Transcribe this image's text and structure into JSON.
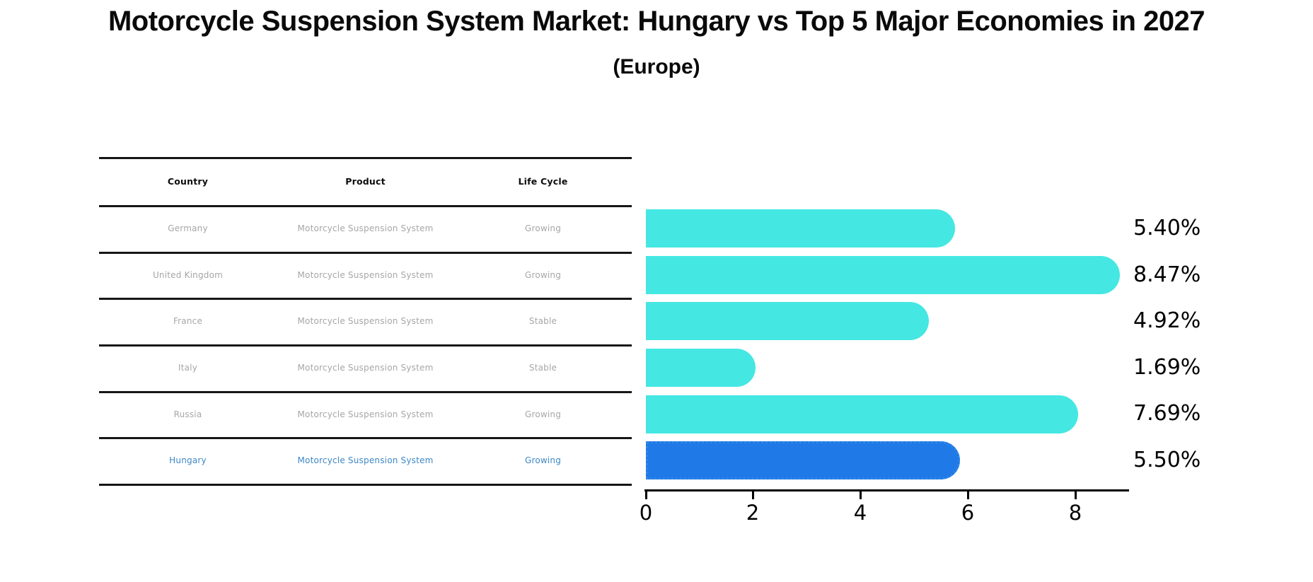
{
  "title": "Motorcycle Suspension System Market: Hungary vs Top 5 Major Economies in 2027",
  "subtitle": "(Europe)",
  "table": {
    "headers": {
      "country": "Country",
      "product": "Product",
      "life_cycle": "Life Cycle"
    },
    "rows": [
      {
        "country": "Germany",
        "product": "Motorcycle Suspension System",
        "life_cycle": "Growing",
        "highlighted": false
      },
      {
        "country": "United Kingdom",
        "product": "Motorcycle Suspension System",
        "life_cycle": "Growing",
        "highlighted": false
      },
      {
        "country": "France",
        "product": "Motorcycle Suspension System",
        "life_cycle": "Stable",
        "highlighted": false
      },
      {
        "country": "Italy",
        "product": "Motorcycle Suspension System",
        "life_cycle": "Stable",
        "highlighted": false
      },
      {
        "country": "Russia",
        "product": "Motorcycle Suspension System",
        "life_cycle": "Growing",
        "highlighted": false
      },
      {
        "country": "Hungary",
        "product": "Motorcycle Suspension System",
        "life_cycle": "Growing",
        "highlighted": true
      }
    ]
  },
  "chart_data": {
    "type": "bar",
    "orientation": "horizontal",
    "categories": [
      "Germany",
      "United Kingdom",
      "France",
      "Italy",
      "Russia",
      "Hungary"
    ],
    "values": [
      5.4,
      8.47,
      4.92,
      1.69,
      7.69,
      5.5
    ],
    "value_labels": [
      "5.40%",
      "8.47%",
      "4.92%",
      "1.69%",
      "7.69%",
      "5.50%"
    ],
    "x_ticks": [
      0,
      2,
      4,
      6,
      8
    ],
    "xlim": [
      0,
      9
    ],
    "grid": false,
    "legend": "none",
    "bar_color": "#45e7e2",
    "highlight_color": "#1f79e6",
    "highlight_border_color": "#2f86ea",
    "highlight_index": 5,
    "highlight_text_color": "#3d87c6"
  },
  "layout_colors": {
    "background": "#ffffff",
    "table_line": "#161616",
    "muted_text": "#a6a6a6",
    "axis": "#000000"
  }
}
